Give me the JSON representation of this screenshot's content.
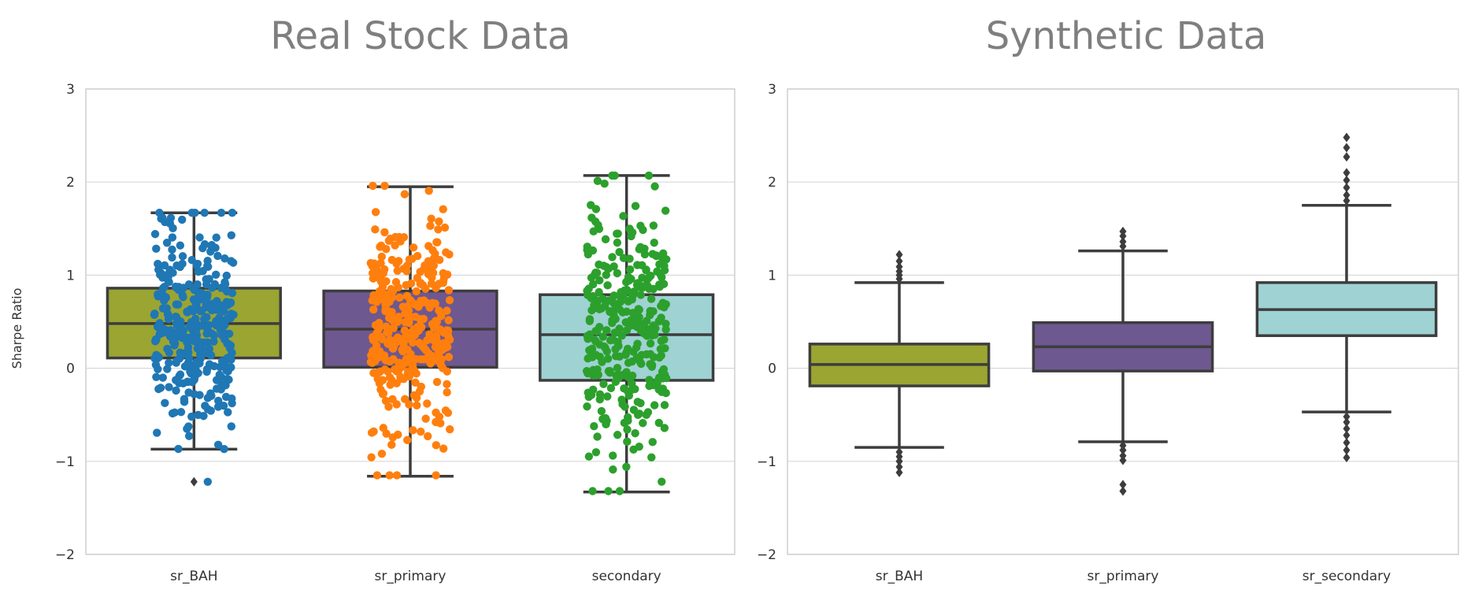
{
  "chart_data": [
    {
      "type": "box",
      "title": "Real Stock Data",
      "ylabel": "Sharpe Ratio",
      "xlabel": "",
      "ylim": [
        -2,
        3
      ],
      "yticks": [
        "−2",
        "−1",
        "0",
        "1",
        "2",
        "3"
      ],
      "ytick_values": [
        -2,
        -1,
        0,
        1,
        2,
        3
      ],
      "grid": true,
      "stripplot": true,
      "categories": [
        "sr_BAH",
        "sr_primary",
        "secondary"
      ],
      "boxes": [
        {
          "name": "sr_BAH",
          "color": "#9aa532",
          "point_color": "#1f77b4",
          "whisker_low": -0.87,
          "q1": 0.11,
          "median": 0.48,
          "q3": 0.86,
          "whisker_high": 1.67,
          "outliers": [
            -1.22
          ],
          "points_min": -1.22,
          "points_max": 1.67
        },
        {
          "name": "sr_primary",
          "color": "#6e5890",
          "point_color": "#ff7f0e",
          "whisker_low": -1.16,
          "q1": 0.01,
          "median": 0.42,
          "q3": 0.83,
          "whisker_high": 1.95,
          "outliers": [],
          "points_min": -1.15,
          "points_max": 1.96
        },
        {
          "name": "secondary",
          "color": "#9fd2d3",
          "point_color": "#2ca02c",
          "whisker_low": -1.33,
          "q1": -0.13,
          "median": 0.36,
          "q3": 0.79,
          "whisker_high": 2.07,
          "outliers": [],
          "points_min": -1.32,
          "points_max": 2.07
        }
      ]
    },
    {
      "type": "box",
      "title": "Synthetic Data",
      "ylabel": "",
      "xlabel": "",
      "ylim": [
        -2,
        3
      ],
      "yticks": [
        "−2",
        "−1",
        "0",
        "1",
        "2",
        "3"
      ],
      "ytick_values": [
        -2,
        -1,
        0,
        1,
        2,
        3
      ],
      "grid": true,
      "stripplot": false,
      "categories": [
        "sr_BAH",
        "sr_primary",
        "sr_secondary"
      ],
      "boxes": [
        {
          "name": "sr_BAH",
          "color": "#9aa532",
          "whisker_low": -0.85,
          "q1": -0.19,
          "median": 0.04,
          "q3": 0.26,
          "whisker_high": 0.92,
          "outliers": [
            -1.12,
            -1.06,
            -1.0,
            -0.95,
            -0.9,
            0.96,
            1.0,
            1.04,
            1.09,
            1.15,
            1.22
          ]
        },
        {
          "name": "sr_primary",
          "color": "#6e5890",
          "whisker_low": -0.79,
          "q1": -0.03,
          "median": 0.23,
          "q3": 0.49,
          "whisker_high": 1.26,
          "outliers": [
            -1.32,
            -1.25,
            -0.99,
            -0.94,
            -0.88,
            -0.83,
            1.31,
            1.36,
            1.42,
            1.47
          ]
        },
        {
          "name": "sr_secondary",
          "color": "#9fd2d3",
          "whisker_low": -0.47,
          "q1": 0.35,
          "median": 0.63,
          "q3": 0.92,
          "whisker_high": 1.75,
          "outliers": [
            -0.96,
            -0.88,
            -0.8,
            -0.72,
            -0.65,
            -0.58,
            -0.52,
            1.8,
            1.86,
            1.94,
            2.02,
            2.1,
            2.27,
            2.37,
            2.48
          ]
        }
      ]
    }
  ]
}
